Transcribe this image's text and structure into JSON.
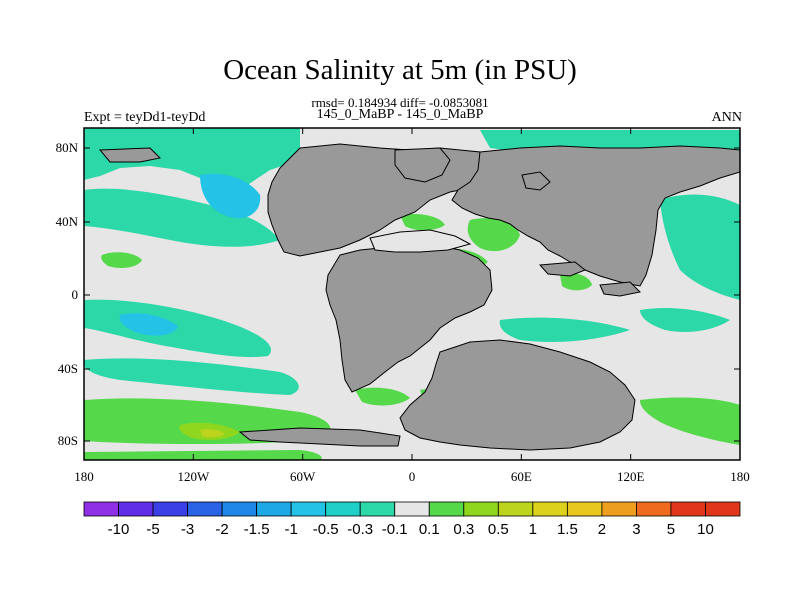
{
  "figure": {
    "title": "Ocean Salinity at 5m (in PSU)",
    "stats_line": "rmsd= 0.184934 diff= -0.0853081",
    "period_line": "145_0_MaBP - 145_0_MaBP",
    "experiment_label": "Expt = teyDd1-teyDd",
    "season_label": "ANN"
  },
  "axes": {
    "x_ticks": [
      "180",
      "120W",
      "60W",
      "0",
      "60E",
      "120E",
      "180"
    ],
    "y_ticks": [
      "80N",
      "40N",
      "0",
      "40S",
      "80S"
    ]
  },
  "colorbar": {
    "labels": [
      "-10",
      "-5",
      "-3",
      "-2",
      "-1.5",
      "-1",
      "-0.5",
      "-0.3",
      "-0.1",
      "0.1",
      "0.3",
      "0.5",
      "1",
      "1.5",
      "2",
      "3",
      "5",
      "10"
    ],
    "colors": [
      "#8f2fe6",
      "#5f2ee6",
      "#3a3fe6",
      "#2a62e6",
      "#1e86e6",
      "#1ea8e6",
      "#22c3e6",
      "#1ed0c8",
      "#2dd8a8",
      "#e6e6e6",
      "#55d84a",
      "#8fd61e",
      "#bcd41e",
      "#dcd21e",
      "#e8c81e",
      "#ee9e1e",
      "#ee6a1e",
      "#e0361a"
    ]
  },
  "colors": {
    "land": "#999999",
    "near_zero": "#e6e6e6",
    "teal": "#2dd8a8",
    "green": "#55d84a",
    "cyan": "#22c3e6"
  }
}
